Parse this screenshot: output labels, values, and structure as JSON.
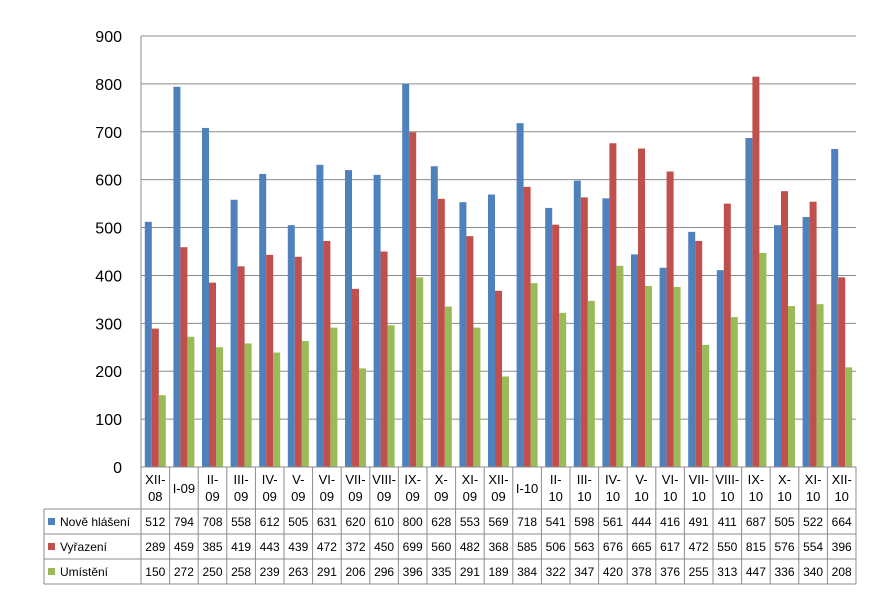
{
  "chart_data": {
    "type": "bar",
    "title": "",
    "xlabel": "",
    "ylabel": "",
    "ylim": [
      0,
      900
    ],
    "yticks": [
      "0",
      "100",
      "200",
      "300",
      "400",
      "500",
      "600",
      "700",
      "800",
      "900"
    ],
    "grid": true,
    "legend": "data-table",
    "categories": [
      [
        "XII-",
        "08"
      ],
      [
        "I-09"
      ],
      [
        "II-",
        "09"
      ],
      [
        "III-",
        "09"
      ],
      [
        "IV-",
        "09"
      ],
      [
        "V-",
        "09"
      ],
      [
        "VI-",
        "09"
      ],
      [
        "VII-",
        "09"
      ],
      [
        "VIII-",
        "09"
      ],
      [
        "IX-",
        "09"
      ],
      [
        "X-",
        "09"
      ],
      [
        "XI-",
        "09"
      ],
      [
        "XII-",
        "09"
      ],
      [
        "I-10"
      ],
      [
        "II-",
        "10"
      ],
      [
        "III-",
        "10"
      ],
      [
        "IV-",
        "10"
      ],
      [
        "V-",
        "10"
      ],
      [
        "VI-",
        "10"
      ],
      [
        "VII-",
        "10"
      ],
      [
        "VIII-",
        "10"
      ],
      [
        "IX-",
        "10"
      ],
      [
        "X-",
        "10"
      ],
      [
        "XI-",
        "10"
      ],
      [
        "XII-",
        "10"
      ]
    ],
    "series": [
      {
        "name": "Nově hlášení",
        "color": "#4F81BD",
        "values": [
          512,
          794,
          708,
          558,
          612,
          505,
          631,
          620,
          610,
          800,
          628,
          553,
          569,
          718,
          541,
          598,
          561,
          444,
          416,
          491,
          411,
          687,
          505,
          522,
          664
        ]
      },
      {
        "name": "Vyřazení",
        "color": "#C0504D",
        "values": [
          289,
          459,
          385,
          419,
          443,
          439,
          472,
          372,
          450,
          699,
          560,
          482,
          368,
          585,
          506,
          563,
          676,
          665,
          617,
          472,
          550,
          815,
          576,
          554,
          396
        ]
      },
      {
        "name": "Umístění",
        "color": "#9BBB59",
        "values": [
          150,
          272,
          250,
          258,
          239,
          263,
          291,
          206,
          296,
          396,
          335,
          291,
          189,
          384,
          322,
          347,
          420,
          378,
          376,
          255,
          313,
          447,
          336,
          340,
          208
        ]
      }
    ]
  }
}
